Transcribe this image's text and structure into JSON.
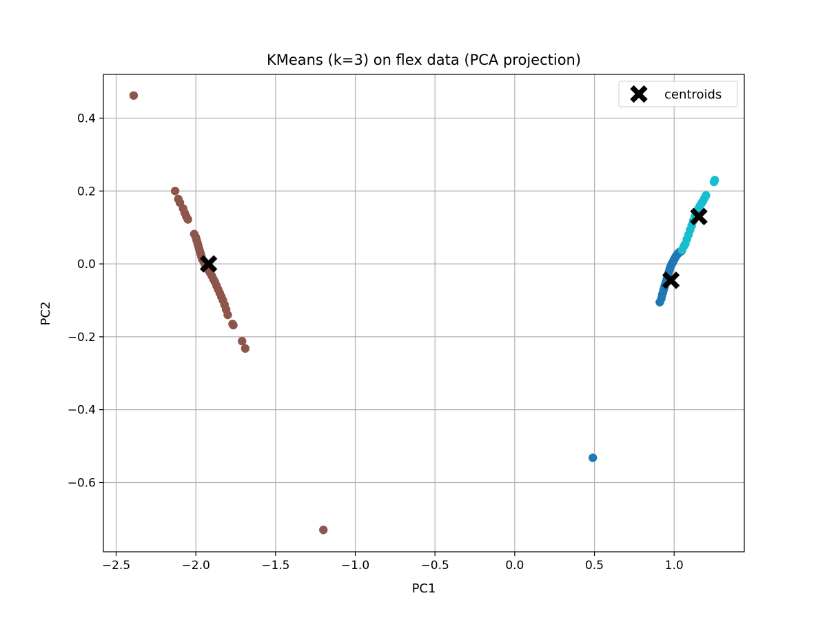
{
  "chart_data": {
    "type": "scatter",
    "title": "KMeans (k=3) on flex data (PCA projection)",
    "xlabel": "PC1",
    "ylabel": "PC2",
    "xlim": [
      -2.58,
      1.44
    ],
    "ylim": [
      -0.79,
      0.52
    ],
    "xticks": [
      -2.5,
      -2.0,
      -1.5,
      -1.0,
      -0.5,
      0.0,
      0.5,
      1.0
    ],
    "xtick_labels": [
      "−2.5",
      "−2.0",
      "−1.5",
      "−1.0",
      "−0.5",
      "0.0",
      "0.5",
      "1.0"
    ],
    "yticks": [
      0.4,
      0.2,
      0.0,
      -0.2,
      -0.4,
      -0.6
    ],
    "ytick_labels": [
      "0.4",
      "0.2",
      "0.0",
      "−0.2",
      "−0.4",
      "−0.6"
    ],
    "grid": true,
    "legend": {
      "position": "top-right",
      "entries": [
        "centroids"
      ]
    },
    "clusters": [
      {
        "name": "cluster-0",
        "color": "#1f77b4",
        "points": [
          [
            0.49,
            -0.532
          ],
          [
            0.91,
            -0.105
          ],
          [
            0.92,
            -0.095
          ],
          [
            0.925,
            -0.085
          ],
          [
            0.93,
            -0.078
          ],
          [
            0.935,
            -0.07
          ],
          [
            0.94,
            -0.062
          ],
          [
            0.945,
            -0.055
          ],
          [
            0.95,
            -0.048
          ],
          [
            0.955,
            -0.04
          ],
          [
            0.96,
            -0.032
          ],
          [
            0.965,
            -0.025
          ],
          [
            0.97,
            -0.018
          ],
          [
            0.975,
            -0.01
          ],
          [
            0.98,
            -0.005
          ],
          [
            0.985,
            0.0
          ],
          [
            0.99,
            0.003
          ],
          [
            0.995,
            0.008
          ],
          [
            1.0,
            0.012
          ],
          [
            1.005,
            0.016
          ],
          [
            1.01,
            0.02
          ],
          [
            1.015,
            0.023
          ],
          [
            1.02,
            0.026
          ],
          [
            1.025,
            0.029
          ],
          [
            1.03,
            0.031
          ],
          [
            1.035,
            0.033
          ],
          [
            1.04,
            0.034
          ],
          [
            1.045,
            0.035
          ]
        ]
      },
      {
        "name": "cluster-1",
        "color": "#8c564b",
        "points": [
          [
            -2.39,
            0.462
          ],
          [
            -1.2,
            -0.73
          ],
          [
            -2.13,
            0.2
          ],
          [
            -2.11,
            0.178
          ],
          [
            -2.1,
            0.168
          ],
          [
            -2.08,
            0.152
          ],
          [
            -2.07,
            0.14
          ],
          [
            -2.06,
            0.13
          ],
          [
            -2.05,
            0.122
          ],
          [
            -2.01,
            0.082
          ],
          [
            -2.0,
            0.073
          ],
          [
            -1.995,
            0.065
          ],
          [
            -1.99,
            0.058
          ],
          [
            -1.985,
            0.05
          ],
          [
            -1.98,
            0.042
          ],
          [
            -1.975,
            0.035
          ],
          [
            -1.97,
            0.028
          ],
          [
            -1.965,
            0.02
          ],
          [
            -1.96,
            0.013
          ],
          [
            -1.95,
            0.005
          ],
          [
            -1.94,
            -0.003
          ],
          [
            -1.93,
            -0.01
          ],
          [
            -1.92,
            -0.018
          ],
          [
            -1.91,
            -0.025
          ],
          [
            -1.9,
            -0.033
          ],
          [
            -1.89,
            -0.042
          ],
          [
            -1.88,
            -0.05
          ],
          [
            -1.87,
            -0.06
          ],
          [
            -1.86,
            -0.07
          ],
          [
            -1.85,
            -0.08
          ],
          [
            -1.84,
            -0.09
          ],
          [
            -1.83,
            -0.1
          ],
          [
            -1.82,
            -0.112
          ],
          [
            -1.81,
            -0.125
          ],
          [
            -1.8,
            -0.14
          ],
          [
            -1.77,
            -0.165
          ],
          [
            -1.765,
            -0.168
          ],
          [
            -1.71,
            -0.212
          ],
          [
            -1.69,
            -0.232
          ]
        ]
      },
      {
        "name": "cluster-2",
        "color": "#17becf",
        "points": [
          [
            1.05,
            0.038
          ],
          [
            1.06,
            0.048
          ],
          [
            1.07,
            0.055
          ],
          [
            1.08,
            0.068
          ],
          [
            1.09,
            0.08
          ],
          [
            1.1,
            0.093
          ],
          [
            1.11,
            0.105
          ],
          [
            1.12,
            0.118
          ],
          [
            1.13,
            0.13
          ],
          [
            1.14,
            0.142
          ],
          [
            1.15,
            0.15
          ],
          [
            1.16,
            0.158
          ],
          [
            1.17,
            0.165
          ],
          [
            1.18,
            0.172
          ],
          [
            1.19,
            0.18
          ],
          [
            1.2,
            0.188
          ],
          [
            1.25,
            0.225
          ],
          [
            1.255,
            0.23
          ]
        ]
      }
    ],
    "centroids": {
      "label": "centroids",
      "color": "#000000",
      "points": [
        [
          -1.92,
          0.0
        ],
        [
          0.98,
          -0.045
        ],
        [
          1.155,
          0.13
        ]
      ]
    }
  }
}
